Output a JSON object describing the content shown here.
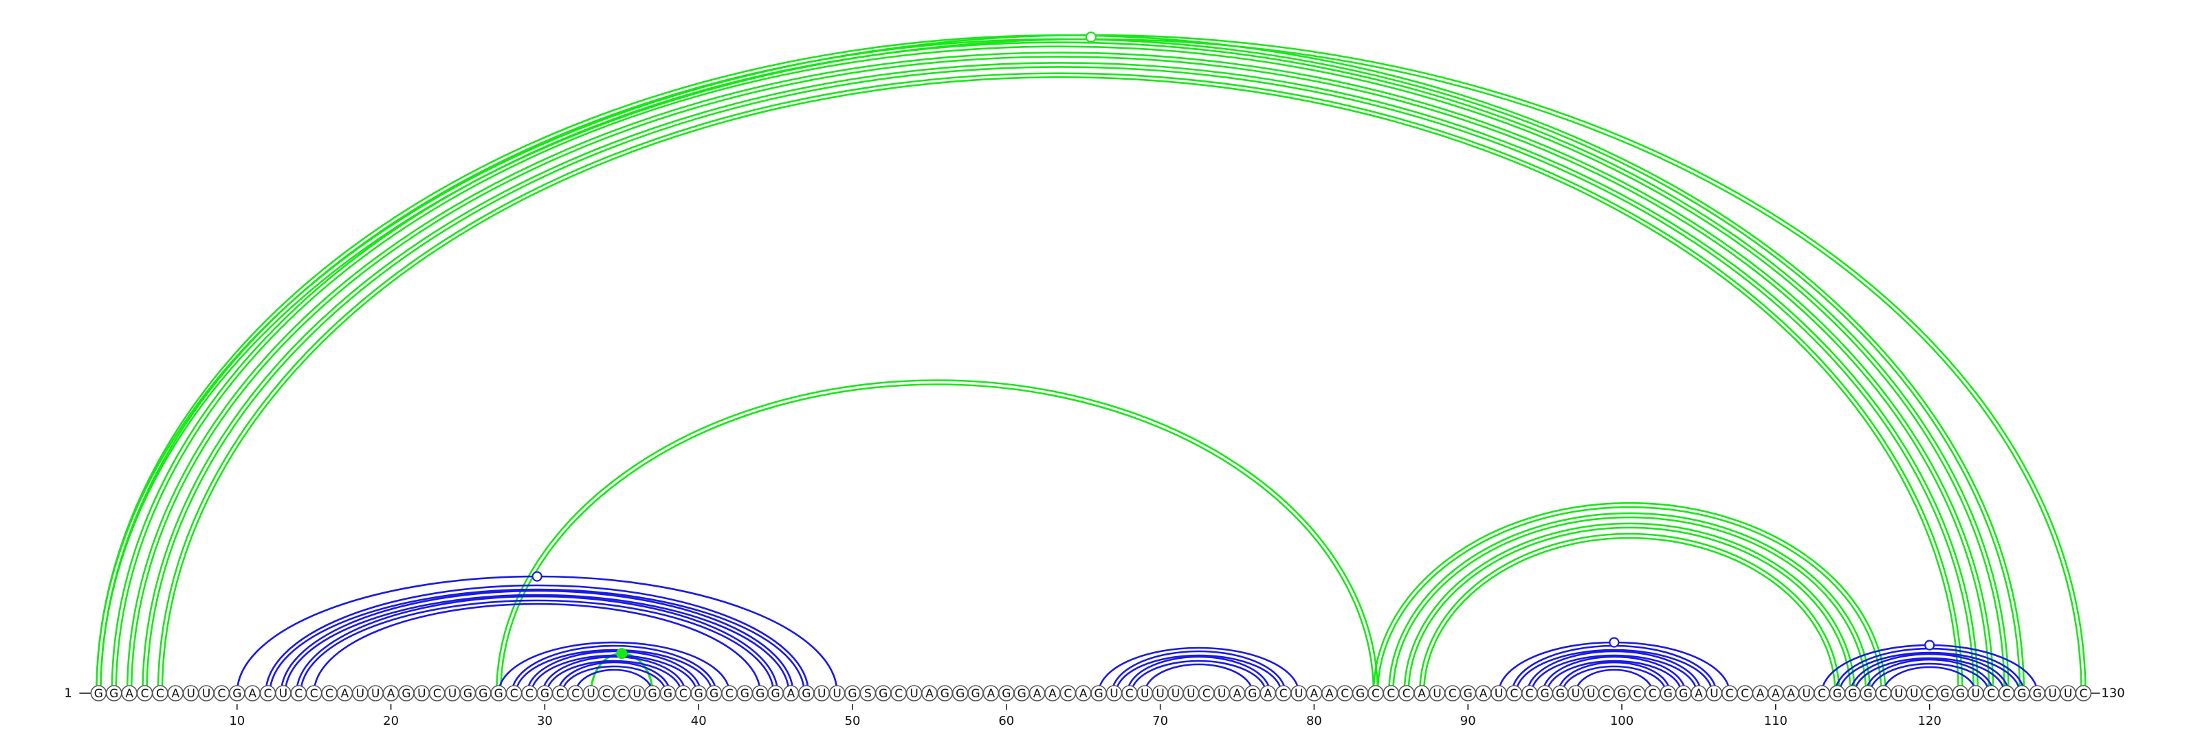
{
  "sequence": "GGACCAUUCGACUCCCAUUAGUCUGGGCCGCCUCCUGGCGGCGGGAGUUGSGCUAGGGAGGAACAGUCUUUUCUAGACUAACGCCCAUCGAUCCGGUUCGCCGGAUCCAAAUCGGGCUUCGGUCCGGUUC",
  "start_label": "1",
  "end_label": "130",
  "ticks": [
    "10",
    "20",
    "30",
    "40",
    "50",
    "60",
    "70",
    "80",
    "90",
    "100",
    "110",
    "120"
  ],
  "tick_positions": [
    10,
    20,
    30,
    40,
    50,
    60,
    70,
    80,
    90,
    100,
    110,
    120
  ],
  "colors": {
    "upper": "#19e619",
    "lower": "#1a1ae6",
    "node_fill": "#ffffff"
  },
  "upper_helices": [
    {
      "pairs": [
        [
          1,
          126
        ],
        [
          2,
          125
        ],
        [
          3,
          124
        ],
        [
          4,
          123
        ],
        [
          5,
          122
        ]
      ],
      "paired_stroke": true,
      "marker": "open",
      "marker_pair": [
        1,
        130
      ]
    },
    {
      "pairs": [
        [
          1,
          130
        ]
      ],
      "paired_stroke": true,
      "marker": "none"
    },
    {
      "pairs": [
        [
          27,
          84
        ]
      ],
      "paired_stroke": true,
      "marker": "none"
    },
    {
      "pairs": [
        [
          84,
          117
        ],
        [
          85,
          116
        ],
        [
          86,
          115
        ],
        [
          87,
          114
        ]
      ],
      "paired_stroke": true,
      "marker": "none"
    },
    {
      "pairs": [
        [
          33,
          37
        ]
      ],
      "paired_stroke": false,
      "marker": "filled"
    }
  ],
  "lower_helices": [
    {
      "pairs": [
        [
          10,
          49
        ],
        [
          12,
          47
        ],
        [
          13,
          46
        ],
        [
          14,
          45
        ],
        [
          15,
          44
        ]
      ],
      "marker": "open"
    },
    {
      "pairs": [
        [
          27,
          42
        ],
        [
          28,
          41
        ],
        [
          29,
          40
        ],
        [
          30,
          39
        ],
        [
          31,
          38
        ],
        [
          32,
          37
        ]
      ],
      "marker": "none"
    },
    {
      "pairs": [
        [
          66,
          79
        ],
        [
          67,
          78
        ],
        [
          68,
          77
        ],
        [
          69,
          76
        ]
      ],
      "marker": "none"
    },
    {
      "pairs": [
        [
          92,
          107
        ],
        [
          93,
          106
        ],
        [
          94,
          105
        ],
        [
          95,
          104
        ],
        [
          96,
          103
        ],
        [
          97,
          102
        ]
      ],
      "marker": "open"
    },
    {
      "pairs": [
        [
          113,
          127
        ],
        [
          114,
          126
        ],
        [
          115,
          125
        ],
        [
          116,
          124
        ],
        [
          117,
          123
        ]
      ],
      "marker": "open"
    }
  ]
}
